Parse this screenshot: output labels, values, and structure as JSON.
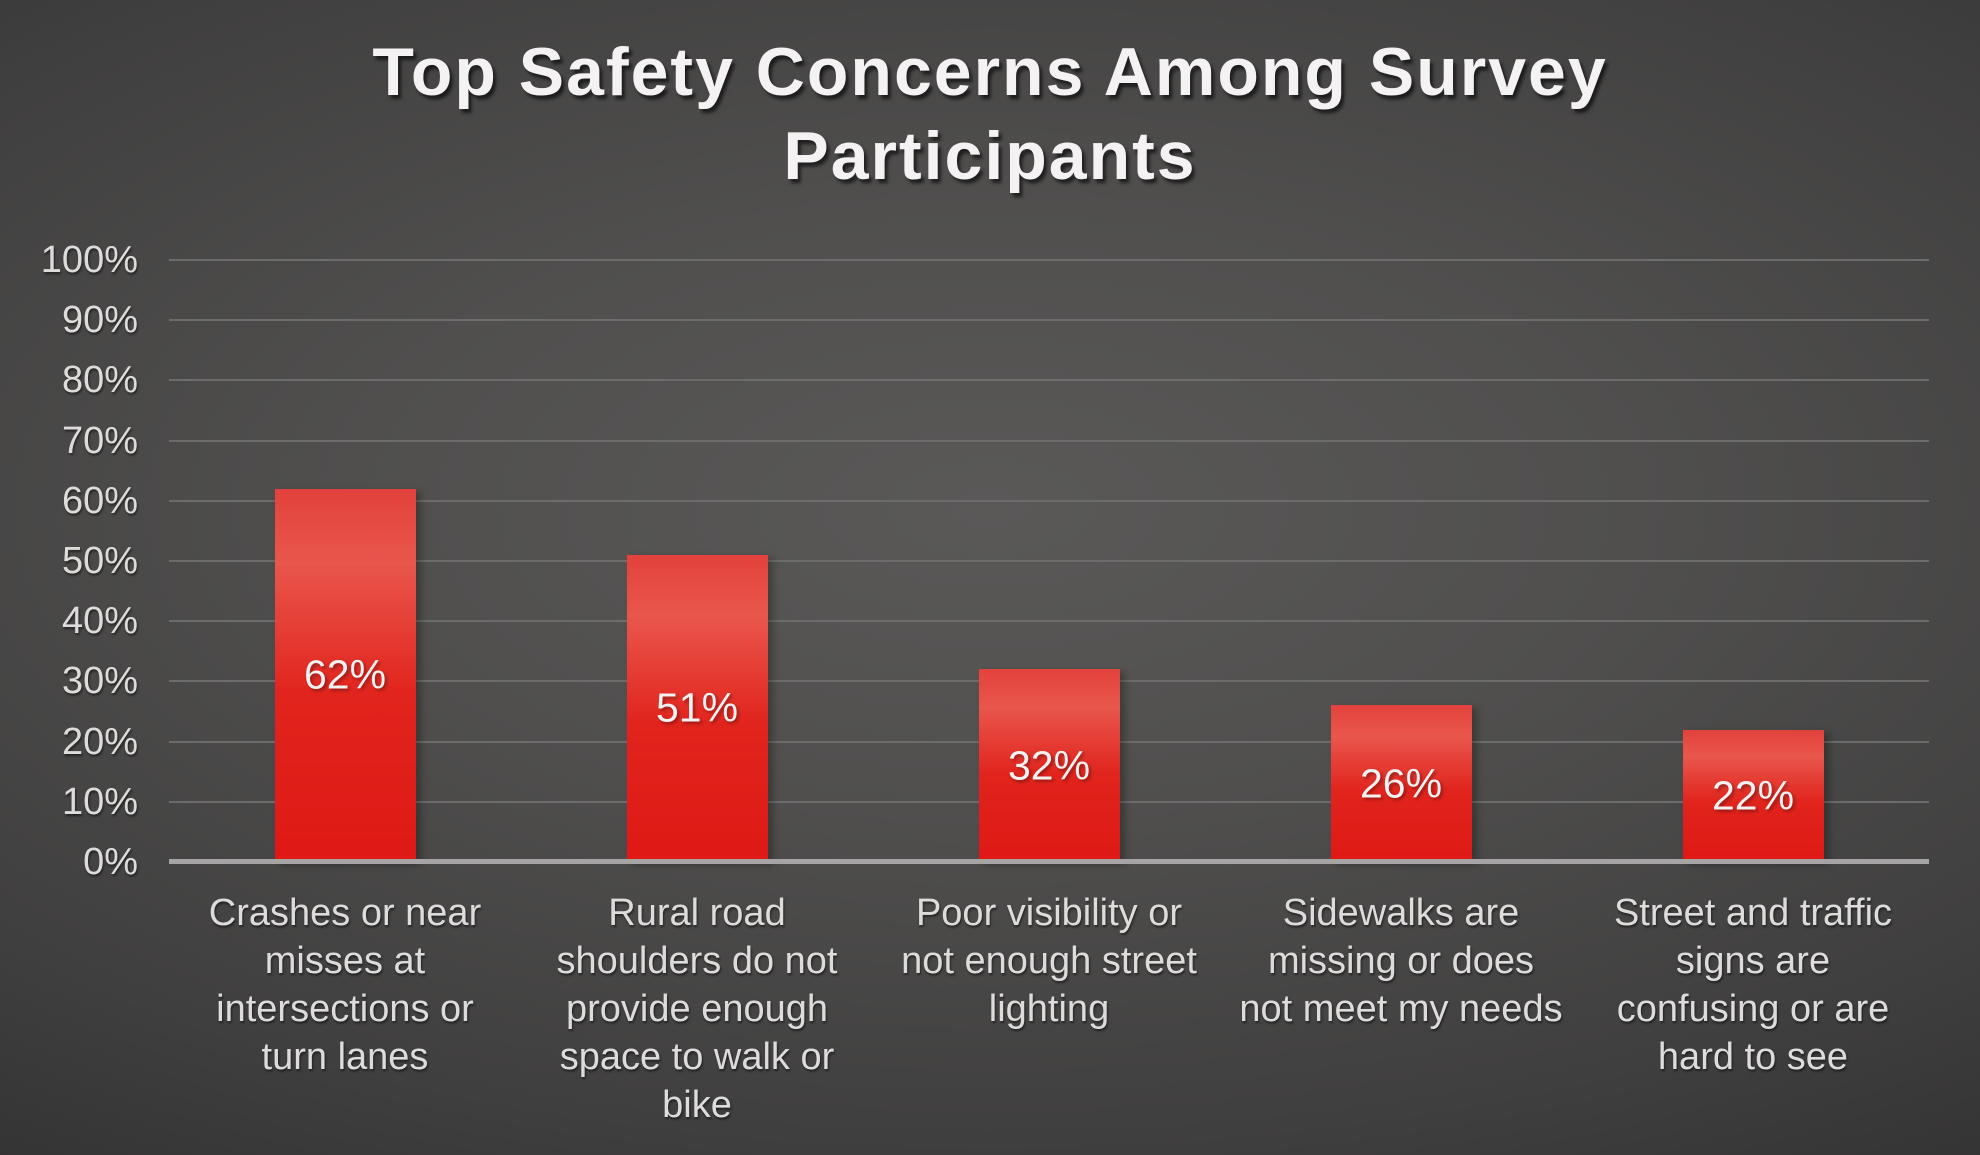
{
  "chart_data": {
    "type": "bar",
    "title": "Top Safety Concerns Among Survey\nParticipants",
    "categories": [
      "Crashes or near\nmisses at\nintersections or\nturn lanes",
      "Rural road\nshoulders do not\nprovide enough\nspace to walk or\nbike",
      "Poor visibility or\nnot enough street\nlighting",
      "Sidewalks are\nmissing or does\nnot meet my needs",
      "Street and traffic\nsigns are\nconfusing or are\nhard to see"
    ],
    "values": [
      62,
      51,
      32,
      26,
      22
    ],
    "bar_labels": [
      "62%",
      "51%",
      "32%",
      "26%",
      "22%"
    ],
    "xlabel": "",
    "ylabel": "",
    "ylim": [
      0,
      100
    ],
    "ytick_step": 10,
    "ytick_labels": [
      "0%",
      "10%",
      "20%",
      "30%",
      "40%",
      "50%",
      "60%",
      "70%",
      "80%",
      "90%",
      "100%"
    ],
    "grid": true,
    "legend": "none",
    "colors": {
      "bar_top": "#e2423c",
      "bar_highlight": "#e9564c",
      "bar_main": "#df1915",
      "value_label_text": "#f3f1f1",
      "axis_text": "#dedbdb",
      "gridline": "#6c6c6c",
      "axis_line": "#a6a4a4",
      "title_text": "#f4f2f2",
      "background_center": "#5a5958",
      "background_edge": "#212020"
    }
  }
}
